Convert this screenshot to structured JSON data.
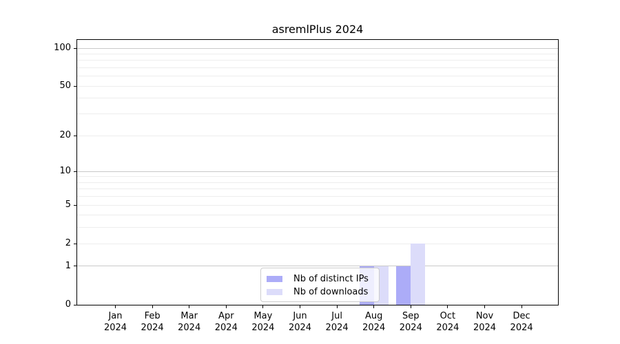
{
  "title": "asremlPlus 2024",
  "chart_data": {
    "type": "bar",
    "title": "asremlPlus 2024",
    "year": "2024",
    "categories": [
      "Jan",
      "Feb",
      "Mar",
      "Apr",
      "May",
      "Jun",
      "Jul",
      "Aug",
      "Sep",
      "Oct",
      "Nov",
      "Dec"
    ],
    "series": [
      {
        "name": "Nb of distinct IPs",
        "color": "#acacf8",
        "values": [
          0,
          0,
          0,
          0,
          0,
          0,
          0,
          1,
          1,
          0,
          0,
          0
        ]
      },
      {
        "name": "Nb of downloads",
        "color": "#dcdcfa",
        "values": [
          0,
          0,
          0,
          0,
          0,
          0,
          0,
          1,
          2,
          0,
          0,
          0
        ]
      }
    ],
    "y_axis": {
      "scale": "log1p",
      "tick_values": [
        0,
        1,
        2,
        5,
        10,
        20,
        50,
        100
      ],
      "tick_labels": [
        "0",
        "1",
        "2",
        "5",
        "10",
        "20",
        "50",
        "100"
      ],
      "major_grid_values": [
        1,
        10,
        100
      ],
      "minor_grid_values": [
        2,
        3,
        4,
        5,
        6,
        7,
        8,
        9,
        20,
        30,
        40,
        50,
        60,
        70,
        80,
        90
      ],
      "range_max": 100
    },
    "legend": {
      "position": "bottom-center"
    },
    "grid": true
  },
  "colors": {
    "background": "#ffffff",
    "spine": "#000000",
    "major_grid": "#c9c9c9",
    "minor_grid": "#ededed",
    "legend_border": "#cccccc",
    "bar_distinct_ips": "#acacf8",
    "bar_downloads": "#dcdcfa"
  }
}
